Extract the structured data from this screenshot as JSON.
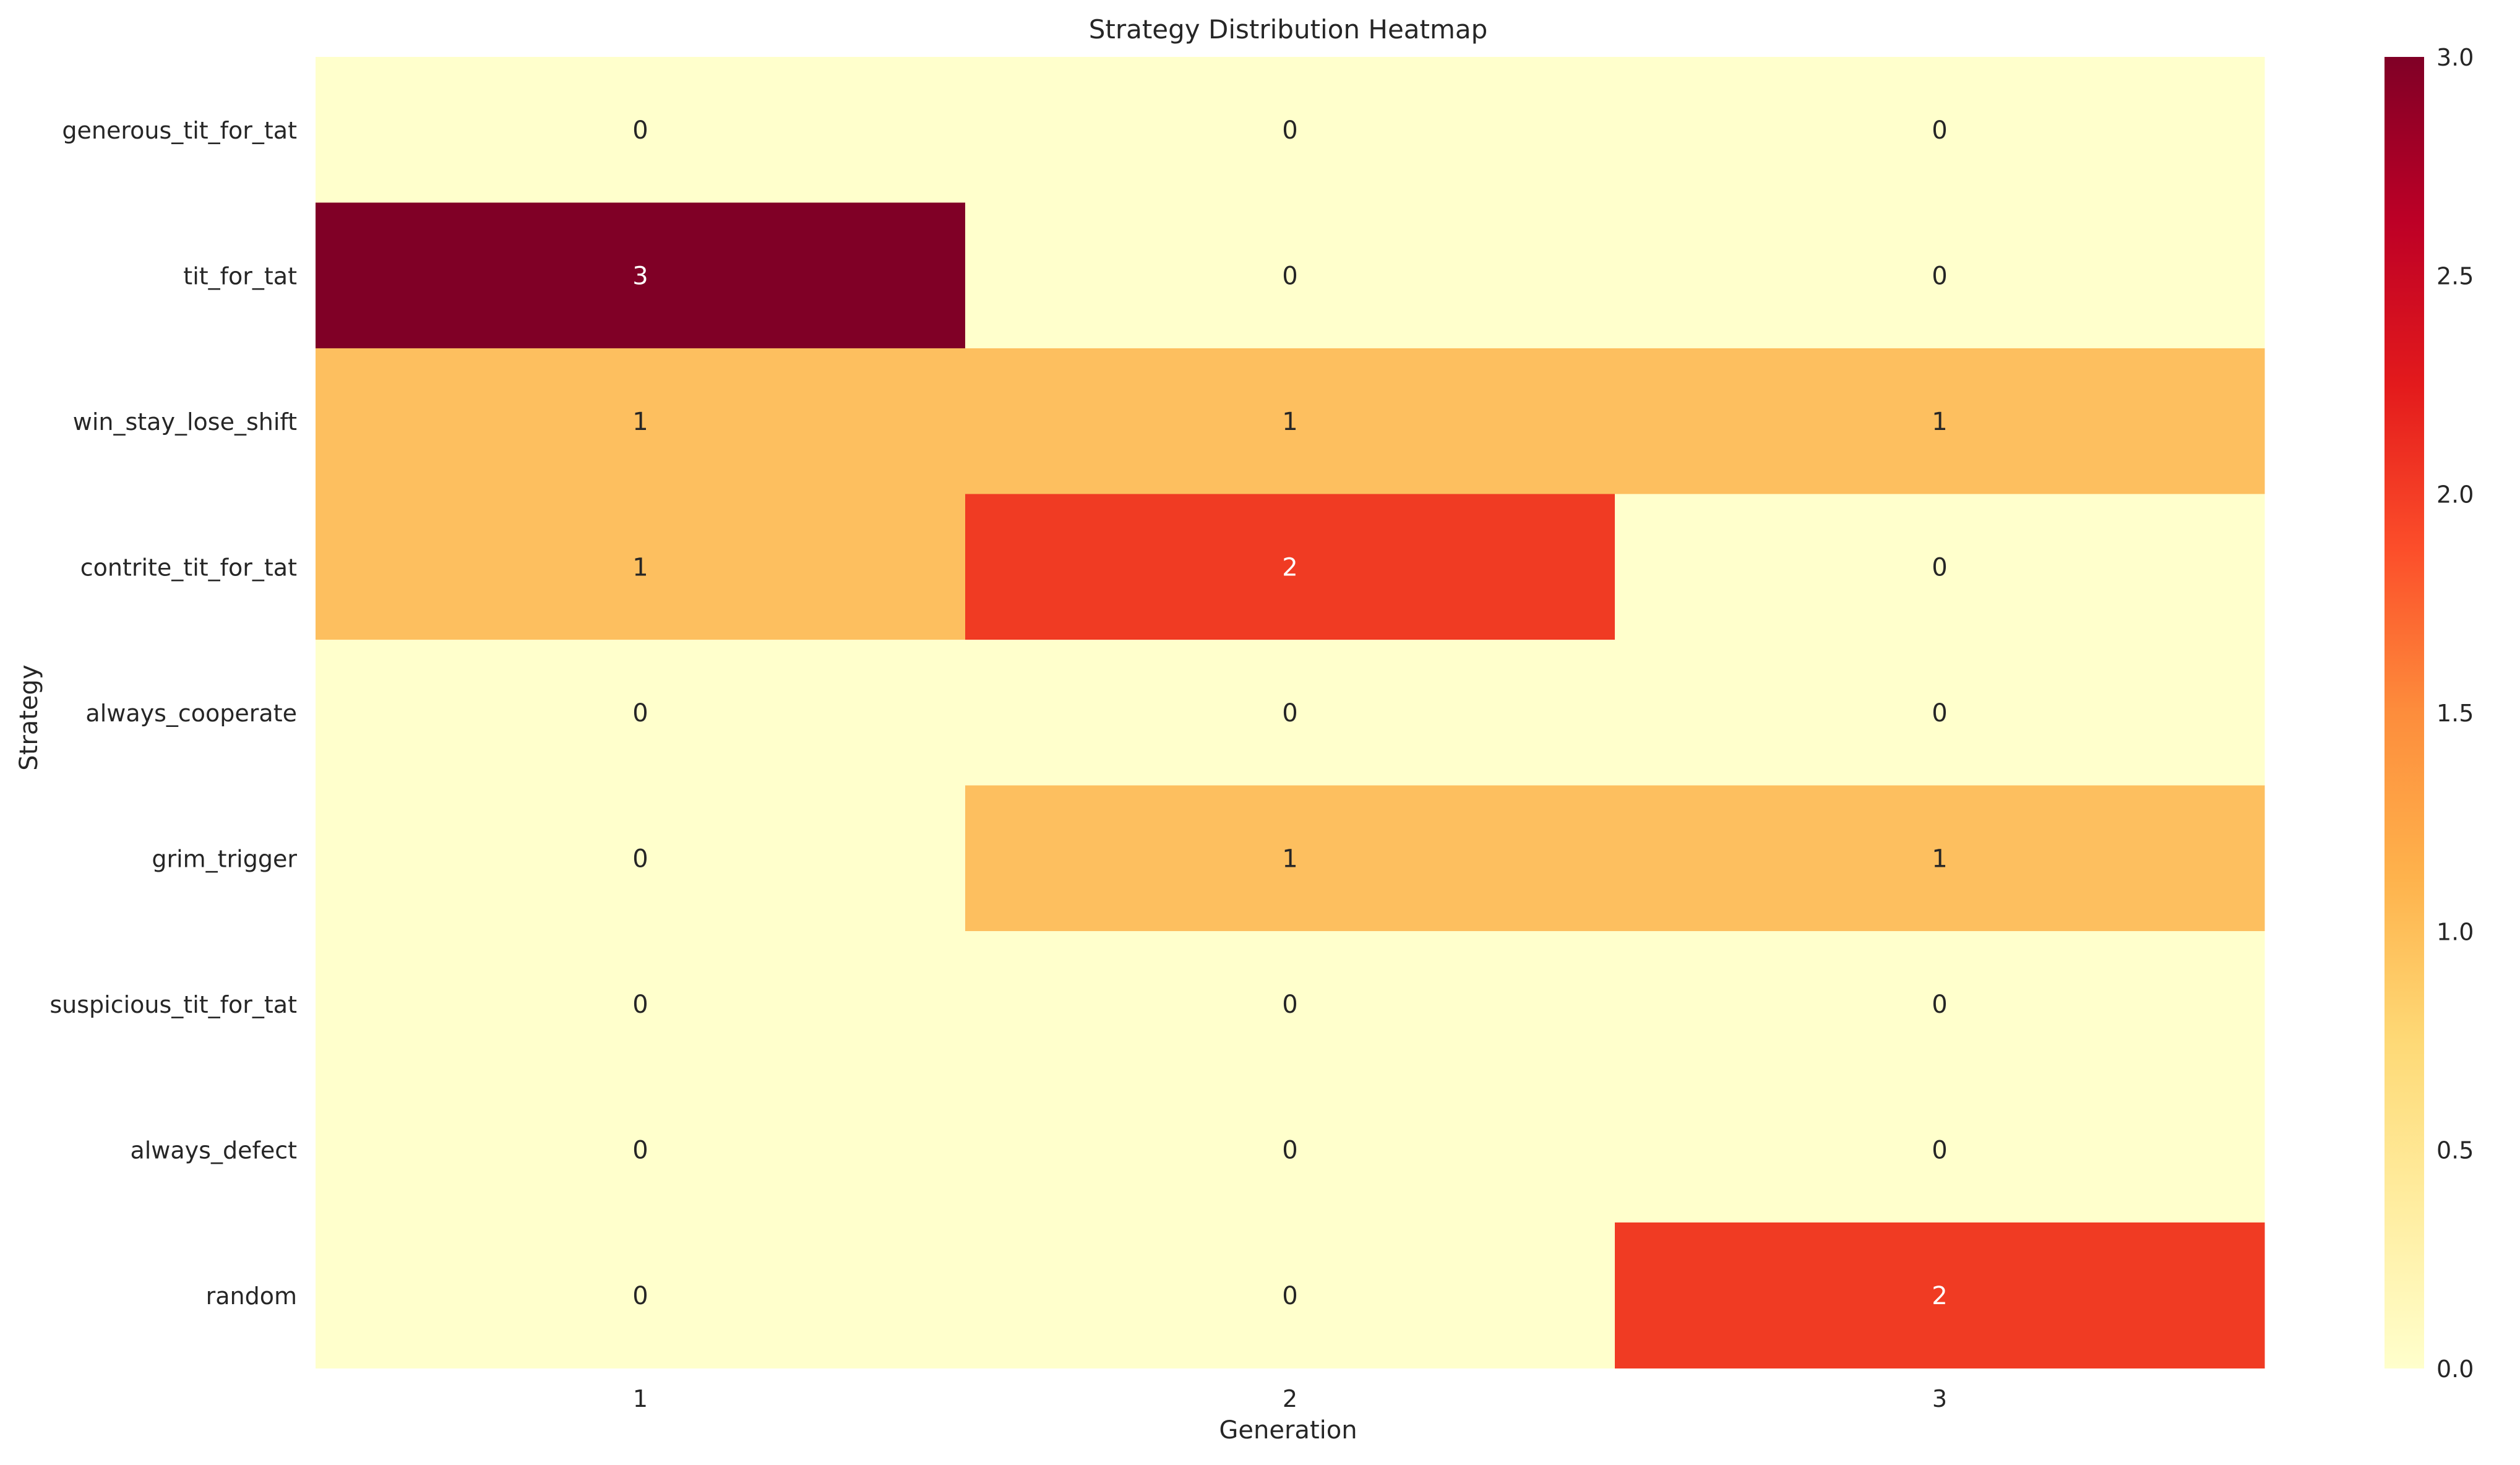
{
  "chart_data": {
    "type": "heatmap",
    "title": "Strategy Distribution Heatmap",
    "xlabel": "Generation",
    "ylabel": "Strategy",
    "x": [
      "1",
      "2",
      "3"
    ],
    "y": [
      "generous_tit_for_tat",
      "tit_for_tat",
      "win_stay_lose_shift",
      "contrite_tit_for_tat",
      "always_cooperate",
      "grim_trigger",
      "suspicious_tit_for_tat",
      "always_defect",
      "random"
    ],
    "values": [
      [
        0,
        0,
        0
      ],
      [
        3,
        0,
        0
      ],
      [
        1,
        1,
        1
      ],
      [
        1,
        2,
        0
      ],
      [
        0,
        0,
        0
      ],
      [
        0,
        1,
        1
      ],
      [
        0,
        0,
        0
      ],
      [
        0,
        0,
        0
      ],
      [
        0,
        0,
        2
      ]
    ],
    "colorbar": {
      "range": [
        0,
        3
      ],
      "ticks": [
        "0.0",
        "0.5",
        "1.0",
        "1.5",
        "2.0",
        "2.5",
        "3.0"
      ],
      "colormap": "YlOrRd"
    },
    "colors": {
      "0": "#ffffcc",
      "1": "#fdbf5f",
      "2": "#f03b23",
      "3": "#800026",
      "label_dark": "#262626",
      "label_light": "#ffffff"
    },
    "annotations": "cell values"
  }
}
